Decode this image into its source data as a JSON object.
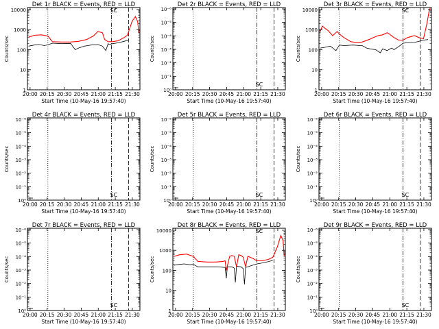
{
  "figure": {
    "background": "#ffffff",
    "events_color": "#000000",
    "lld_color": "#ff0000"
  },
  "chart_data": [
    {
      "type": "line",
      "title": "Det 1r BLACK = Events, RED = LLD",
      "xlabel": "Start Time (10-May-16 19:57:40)",
      "ylabel": "Counts/sec",
      "xtick_labels": [
        "20:00",
        "20:15",
        "20:30",
        "20:45",
        "21:00",
        "21:15",
        "21:30"
      ],
      "ytick_labels": [
        "1",
        "10",
        "100",
        "1000",
        "10000"
      ],
      "ylim_decades": [
        0,
        4.1
      ],
      "xlim_minutes": [
        0,
        99
      ],
      "markers_minutes": {
        "dotted": 18,
        "dashdot": 74,
        "dashed": 89
      },
      "annotation": "SC",
      "annotation_minutes": 76,
      "annotation_top": true,
      "series": [
        {
          "color": "#000000",
          "x": [
            1,
            6,
            10,
            15,
            18,
            22,
            30,
            38,
            42,
            45,
            50,
            56,
            62,
            66,
            69,
            71,
            72,
            75,
            80,
            85,
            89
          ],
          "y": [
            150,
            170,
            180,
            160,
            175,
            210,
            200,
            205,
            100,
            120,
            150,
            170,
            180,
            150,
            90,
            200,
            180,
            200,
            220,
            260,
            300
          ]
        },
        {
          "color": "#ff0000",
          "x": [
            1,
            6,
            12,
            18,
            22,
            30,
            38,
            45,
            52,
            58,
            62,
            66,
            68,
            71,
            75,
            80,
            85,
            88,
            92,
            95,
            97,
            98
          ],
          "y": [
            420,
            520,
            550,
            480,
            250,
            240,
            240,
            260,
            320,
            480,
            800,
            700,
            320,
            250,
            250,
            280,
            400,
            520,
            2500,
            4500,
            2500,
            700
          ]
        }
      ]
    },
    {
      "type": "line",
      "title": "Det 2r BLACK = Events, RED = LLD",
      "xlabel": "Start Time (10-May-16 19:57:40)",
      "ylabel": "Counts/sec",
      "xtick_labels": [
        "20:00",
        "20:15",
        "20:30",
        "20:45",
        "21:00",
        "21:15",
        "21:30"
      ],
      "ytick_labels": [
        "10⁰",
        "10⁻¹",
        "10⁻²",
        "10⁻³",
        "10⁻⁴",
        "10⁻⁵",
        "10⁻⁶"
      ],
      "ylim_decades": [
        0,
        6.1
      ],
      "xlim_minutes": [
        0,
        99
      ],
      "markers_minutes": {
        "dotted": 18,
        "dashdot": 74,
        "dashed": 89
      },
      "annotation": "SC",
      "annotation_minutes": 76,
      "annotation_top": false,
      "series": []
    },
    {
      "type": "line",
      "title": "Det 3r BLACK = Events, RED = LLD",
      "xlabel": "Start Time (10-May-16 19:57:40)",
      "ylabel": "Counts/sec",
      "xtick_labels": [
        "20:00",
        "20:15",
        "20:30",
        "20:45",
        "21:00",
        "21:15",
        "21:30"
      ],
      "ytick_labels": [
        "1",
        "10",
        "100",
        "1000",
        "10000"
      ],
      "ylim_decades": [
        0,
        4.1
      ],
      "xlim_minutes": [
        0,
        99
      ],
      "markers_minutes": {
        "dotted": 18,
        "dashdot": 74,
        "dashed": 89
      },
      "annotation": "SC",
      "annotation_minutes": 76,
      "annotation_top": true,
      "series": [
        {
          "color": "#000000",
          "x": [
            1,
            5,
            10,
            15,
            18,
            22,
            30,
            36,
            38,
            42,
            45,
            50,
            54,
            56,
            60,
            64,
            66,
            70,
            74,
            78,
            84,
            88,
            92,
            96
          ],
          "y": [
            120,
            130,
            150,
            90,
            170,
            160,
            170,
            160,
            160,
            120,
            110,
            100,
            70,
            110,
            90,
            120,
            100,
            140,
            210,
            220,
            230,
            260,
            300,
            320
          ]
        },
        {
          "color": "#ff0000",
          "x": [
            1,
            3,
            5,
            8,
            12,
            16,
            18,
            22,
            28,
            34,
            38,
            44,
            48,
            52,
            56,
            60,
            62,
            66,
            70,
            74,
            78,
            84,
            88,
            92,
            95,
            97,
            98
          ],
          "y": [
            800,
            1500,
            1200,
            900,
            500,
            800,
            600,
            400,
            250,
            220,
            240,
            320,
            400,
            500,
            550,
            700,
            600,
            400,
            300,
            300,
            400,
            500,
            400,
            350,
            2000,
            9000,
            12000
          ]
        }
      ]
    },
    {
      "type": "line",
      "title": "Det 4r BLACK = Events, RED = LLD",
      "xlabel": "Start Time (10-May-16 19:57:40)",
      "ylabel": "Counts/sec",
      "xtick_labels": [
        "20:00",
        "20:15",
        "20:30",
        "20:45",
        "21:00",
        "21:15",
        "21:30"
      ],
      "ytick_labels": [
        "10⁰",
        "10⁻¹",
        "10⁻²",
        "10⁻³",
        "10⁻⁴",
        "10⁻⁵",
        "10⁻⁶"
      ],
      "ylim_decades": [
        0,
        6.1
      ],
      "xlim_minutes": [
        0,
        99
      ],
      "markers_minutes": {
        "dotted": 18,
        "dashdot": 74,
        "dashed": 89
      },
      "annotation": "SC",
      "annotation_minutes": 76,
      "annotation_top": false,
      "series": []
    },
    {
      "type": "line",
      "title": "Det 5r BLACK = Events, RED = LLD",
      "xlabel": "Start Time (10-May-16 19:57:40)",
      "ylabel": "Counts/sec",
      "xtick_labels": [
        "20:00",
        "20:15",
        "20:30",
        "20:45",
        "21:00",
        "21:15",
        "21:30"
      ],
      "ytick_labels": [
        "10⁰",
        "10⁻¹",
        "10⁻²",
        "10⁻³",
        "10⁻⁴",
        "10⁻⁵",
        "10⁻⁶"
      ],
      "ylim_decades": [
        0,
        6.1
      ],
      "xlim_minutes": [
        0,
        99
      ],
      "markers_minutes": {
        "dotted": 18,
        "dashdot": 74,
        "dashed": 89
      },
      "annotation": "SC",
      "annotation_minutes": 76,
      "annotation_top": false,
      "series": []
    },
    {
      "type": "line",
      "title": "Det 6r BLACK = Events, RED = LLD",
      "xlabel": "Start Time (10-May-16 19:57:40)",
      "ylabel": "Counts/sec",
      "xtick_labels": [
        "20:00",
        "20:15",
        "20:30",
        "20:45",
        "21:00",
        "21:15",
        "21:30"
      ],
      "ytick_labels": [
        "10⁰",
        "10⁻¹",
        "10⁻²",
        "10⁻³",
        "10⁻⁴",
        "10⁻⁵",
        "10⁻⁶"
      ],
      "ylim_decades": [
        0,
        6.1
      ],
      "xlim_minutes": [
        0,
        99
      ],
      "markers_minutes": {
        "dotted": 18,
        "dashdot": 74,
        "dashed": 89
      },
      "annotation": "SC",
      "annotation_minutes": 76,
      "annotation_top": false,
      "series": []
    },
    {
      "type": "line",
      "title": "Det 7r BLACK = Events, RED = LLD",
      "xlabel": "Start Time (10-May-16 19:57:40)",
      "ylabel": "Counts/sec",
      "xtick_labels": [
        "20:00",
        "20:15",
        "20:30",
        "20:45",
        "21:00",
        "21:15",
        "21:30"
      ],
      "ytick_labels": [
        "10⁰",
        "10⁻¹",
        "10⁻²",
        "10⁻³",
        "10⁻⁴",
        "10⁻⁵",
        "10⁻⁶"
      ],
      "ylim_decades": [
        0,
        6.1
      ],
      "xlim_minutes": [
        0,
        99
      ],
      "markers_minutes": {
        "dotted": 18,
        "dashdot": 74,
        "dashed": 89
      },
      "annotation": "SC",
      "annotation_minutes": 76,
      "annotation_top": false,
      "series": []
    },
    {
      "type": "line",
      "title": "Det 8r BLACK = Events, RED = LLD",
      "xlabel": "Start Time (10-May-16 19:57:40)",
      "ylabel": "Counts/sec",
      "xtick_labels": [
        "20:00",
        "20:15",
        "20:30",
        "20:45",
        "21:00",
        "21:15",
        "21:30"
      ],
      "ytick_labels": [
        "1",
        "10",
        "100",
        "1000",
        "10000"
      ],
      "ylim_decades": [
        0,
        4.1
      ],
      "xlim_minutes": [
        0,
        99
      ],
      "markers_minutes": {
        "dotted": 18,
        "dashdot": 74,
        "dashed": 89
      },
      "annotation": "SC",
      "annotation_minutes": 76,
      "annotation_top": true,
      "series": [
        {
          "color": "#000000",
          "x": [
            1,
            6,
            10,
            15,
            18,
            22,
            30,
            40,
            46,
            47,
            48,
            52,
            54,
            55,
            56,
            60,
            62,
            63,
            64,
            66,
            70,
            74,
            78,
            84,
            88
          ],
          "y": [
            180,
            200,
            210,
            190,
            200,
            150,
            150,
            150,
            140,
            40,
            150,
            150,
            130,
            25,
            160,
            150,
            120,
            20,
            140,
            150,
            180,
            210,
            230,
            270,
            320
          ]
        },
        {
          "color": "#ff0000",
          "x": [
            1,
            6,
            12,
            18,
            22,
            30,
            38,
            44,
            46,
            47,
            50,
            52,
            54,
            56,
            58,
            60,
            62,
            64,
            66,
            70,
            74,
            78,
            84,
            88,
            92,
            95,
            97,
            98
          ],
          "y": [
            500,
            600,
            650,
            500,
            280,
            260,
            260,
            280,
            300,
            100,
            500,
            550,
            500,
            150,
            600,
            550,
            450,
            150,
            500,
            400,
            300,
            300,
            350,
            450,
            1500,
            5500,
            3000,
            500
          ]
        }
      ]
    },
    {
      "type": "line",
      "title": "Det 9r BLACK = Events, RED = LLD",
      "xlabel": "Start Time (10-May-16 19:57:40)",
      "ylabel": "Counts/sec",
      "xtick_labels": [
        "20:00",
        "20:15",
        "20:30",
        "20:45",
        "21:00",
        "21:15",
        "21:30"
      ],
      "ytick_labels": [
        "10⁰",
        "10⁻¹",
        "10⁻²",
        "10⁻³",
        "10⁻⁴",
        "10⁻⁵",
        "10⁻⁶"
      ],
      "ylim_decades": [
        0,
        6.1
      ],
      "xlim_minutes": [
        0,
        99
      ],
      "markers_minutes": {
        "dotted": 18,
        "dashdot": 74,
        "dashed": 89
      },
      "annotation": "SC",
      "annotation_minutes": 76,
      "annotation_top": false,
      "series": []
    }
  ]
}
